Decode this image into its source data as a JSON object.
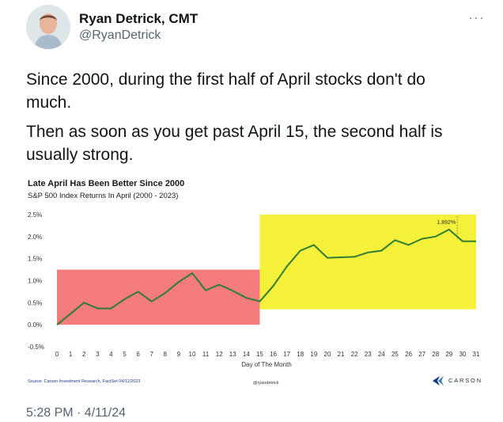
{
  "author": {
    "name": "Ryan Detrick, CMT",
    "handle": "@RyanDetrick",
    "more_icon": "more-horizontal-icon"
  },
  "tweet": {
    "paragraphs": [
      "Since 2000, during the first half of April stocks don't do much.",
      "Then as soon as you get past April 15, the second half is usually strong."
    ]
  },
  "chart": {
    "source": "Source: Carson Investment Research, FactSet 04/11/2023",
    "handle": "@ryandetrick",
    "brand": "CARSON"
  },
  "timestamp": "5:28 PM · 4/11/24",
  "colors": {
    "line": "#2e7d32",
    "first_half_fill": "#f47c7c",
    "second_half_fill": "#f5f03a",
    "brand": "#1a3a8a"
  },
  "chart_data": {
    "type": "line",
    "title": "Late April Has Been Better Since 2000",
    "subtitle": "S&P 500 Index Returns In April (2000 - 2023)",
    "xlabel": "Day of The Month",
    "ylabel": "",
    "x": [
      0,
      1,
      2,
      3,
      4,
      5,
      6,
      7,
      8,
      9,
      10,
      11,
      12,
      13,
      14,
      15,
      16,
      17,
      18,
      19,
      20,
      21,
      22,
      23,
      24,
      25,
      26,
      27,
      28,
      29,
      30,
      31
    ],
    "series": [
      {
        "name": "",
        "values": [
          0.0,
          0.25,
          0.5,
          0.37,
          0.37,
          0.58,
          0.75,
          0.53,
          0.72,
          0.97,
          1.17,
          0.78,
          0.91,
          0.77,
          0.61,
          0.53,
          0.88,
          1.32,
          1.68,
          1.81,
          1.52,
          1.53,
          1.54,
          1.64,
          1.68,
          1.92,
          1.81,
          1.95,
          2.0,
          2.16,
          1.892,
          1.892
        ]
      }
    ],
    "ylim": [
      -0.5,
      2.5
    ],
    "ytick_labels": [
      "-0.5%",
      "0.0%",
      "0.5%",
      "1.0%",
      "1.5%",
      "2.0%",
      "2.5%"
    ],
    "yticks": [
      -0.5,
      0.0,
      0.5,
      1.0,
      1.5,
      2.0,
      2.5
    ],
    "shaded_regions": [
      {
        "x_start": 0,
        "x_end": 15,
        "y_start": 0.0,
        "y_end": 1.25,
        "color": "#f47c7c"
      },
      {
        "x_start": 15,
        "x_end": 31,
        "y_start": 0.35,
        "y_end": 2.5,
        "color": "#f5f03a"
      }
    ],
    "annotation": {
      "x": 29.6,
      "value_label": "1.892%"
    },
    "grid": false,
    "legend": "none"
  }
}
